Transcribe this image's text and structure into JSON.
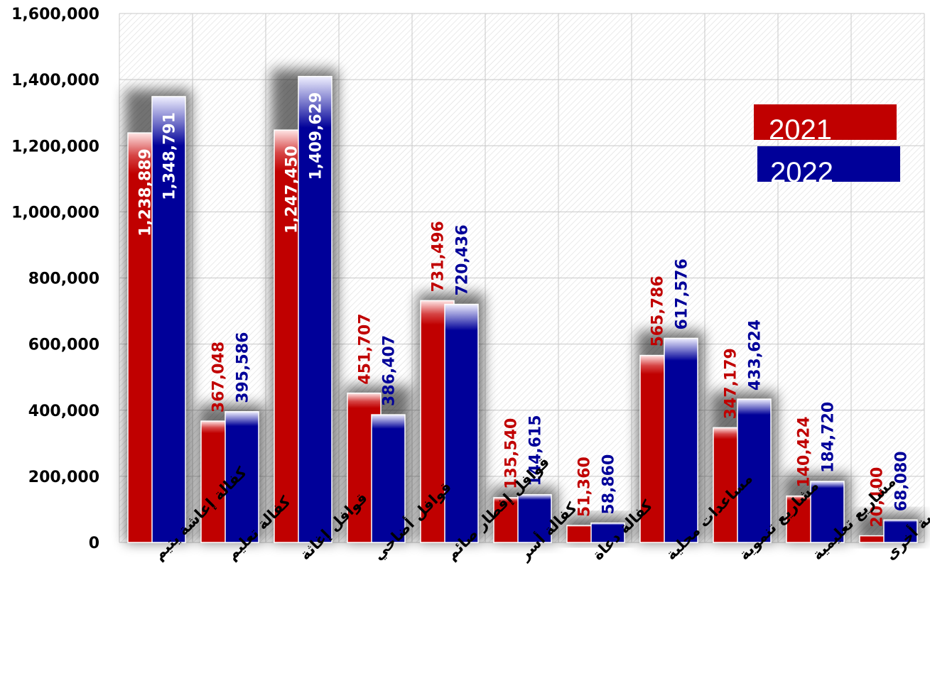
{
  "chart_data": {
    "type": "bar",
    "categories": [
      "كفالة إعاشة يتيم",
      "كفالة تعليم",
      "قوافل إغاثة",
      "قوافل أضاحي",
      "قوافل إفطار صائم",
      "كفالة أسر",
      "كفالة دعاة",
      "مساعدات محلية",
      "مشاريع تنموية",
      "مشاريع تعليمية",
      "مشاريع إنسانية أخرى"
    ],
    "series": [
      {
        "name": "2021",
        "color": "#c00000",
        "values": [
          1238889,
          367048,
          1247450,
          451707,
          731496,
          135540,
          51360,
          565786,
          347179,
          140424,
          20100
        ],
        "labels": [
          "1,238,889",
          "367,048",
          "1,247,450",
          "451,707",
          "731,496",
          "135,540",
          "51,360",
          "565,786",
          "347,179",
          "140,424",
          "20,100"
        ]
      },
      {
        "name": "2022",
        "color": "#000099",
        "values": [
          1348791,
          395586,
          1409629,
          386407,
          720436,
          144615,
          58860,
          617576,
          433624,
          184720,
          68080
        ],
        "labels": [
          "1,348,791",
          "395,586",
          "1,409,629",
          "386,407",
          "720,436",
          "144,615",
          "58,860",
          "617,576",
          "433,624",
          "184,720",
          "68,080"
        ]
      }
    ],
    "yticks": [
      "0",
      "200,000",
      "400,000",
      "600,000",
      "800,000",
      "1,000,000",
      "1,200,000",
      "1,400,000",
      "1,600,000"
    ],
    "ylim": [
      0,
      1600000
    ],
    "grid": true,
    "legend_position": "top-right"
  }
}
